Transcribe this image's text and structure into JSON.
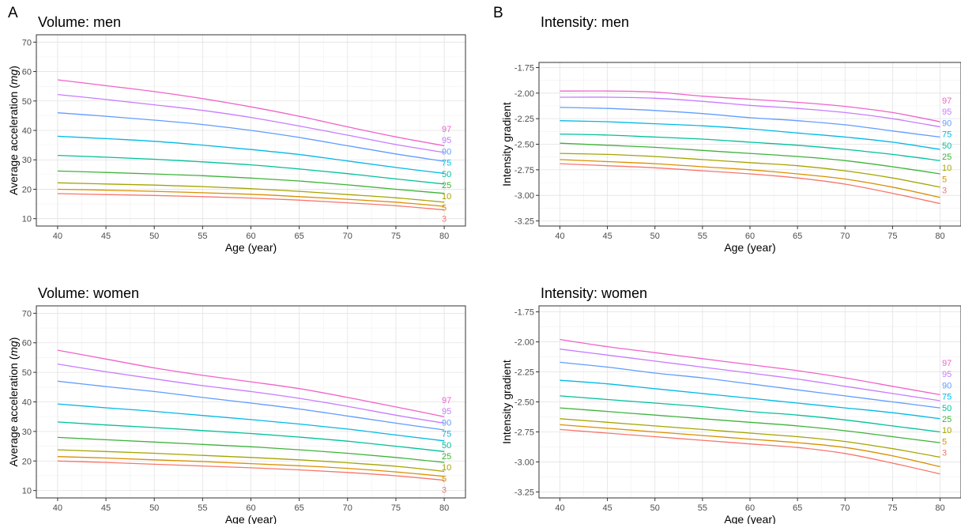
{
  "percentile_colors": {
    "97": "#f063c8",
    "95": "#c77cff",
    "90": "#619cff",
    "75": "#00b8e7",
    "50": "#00c19a",
    "25": "#3eb33a",
    "10": "#a3a500",
    "5": "#d89000",
    "3": "#f8766d"
  },
  "panel_letters": [
    "A",
    "B"
  ],
  "chart_data": [
    {
      "type": "line",
      "panel": "A",
      "title": "Volume: men",
      "xlabel": "Age (year)",
      "ylabel": "Average acceleration (mg)",
      "ylabel_plain": "Average acceleration (",
      "ylabel_italic": "mg",
      "ylabel_end": ")",
      "xlim": [
        37.8,
        82.2
      ],
      "ylim": [
        7.5,
        72.5
      ],
      "xticks": [
        40,
        45,
        50,
        55,
        60,
        65,
        70,
        75,
        80
      ],
      "yticks": [
        10,
        20,
        30,
        40,
        50,
        60,
        70
      ],
      "ytick_labels": [
        "10",
        "20",
        "30",
        "40",
        "50",
        "60",
        "70"
      ],
      "grid": true,
      "x": [
        40,
        45,
        50,
        55,
        60,
        65,
        70,
        75,
        80
      ],
      "series": [
        {
          "name": "97",
          "values": [
            57.2,
            55.2,
            53.2,
            50.8,
            48.0,
            44.8,
            41.2,
            37.8,
            34.8
          ]
        },
        {
          "name": "95",
          "values": [
            52.2,
            50.5,
            48.7,
            46.8,
            44.4,
            41.5,
            38.4,
            35.2,
            32.5
          ]
        },
        {
          "name": "90",
          "values": [
            46.0,
            44.8,
            43.5,
            42.0,
            40.0,
            37.6,
            34.8,
            32.0,
            29.5
          ]
        },
        {
          "name": "75",
          "values": [
            38.0,
            37.2,
            36.3,
            35.0,
            33.5,
            31.8,
            29.6,
            27.4,
            25.4
          ]
        },
        {
          "name": "50",
          "values": [
            31.5,
            30.9,
            30.2,
            29.3,
            28.3,
            26.9,
            25.3,
            23.5,
            21.8
          ]
        },
        {
          "name": "25",
          "values": [
            26.2,
            25.7,
            25.2,
            24.6,
            23.8,
            22.8,
            21.5,
            20.0,
            18.6
          ]
        },
        {
          "name": "10",
          "values": [
            22.2,
            21.8,
            21.4,
            20.9,
            20.2,
            19.3,
            18.2,
            17.1,
            15.6
          ]
        },
        {
          "name": "5",
          "values": [
            20.0,
            19.7,
            19.3,
            18.8,
            18.3,
            17.5,
            16.6,
            15.6,
            14.2
          ]
        },
        {
          "name": "3",
          "values": [
            18.5,
            18.2,
            17.9,
            17.5,
            17.0,
            16.3,
            15.4,
            14.4,
            13.0
          ]
        }
      ]
    },
    {
      "type": "line",
      "panel": "B",
      "title": "Intensity: men",
      "xlabel": "Age (year)",
      "ylabel": "Intensity gradient",
      "xlim": [
        37.8,
        82.2
      ],
      "ylim": [
        -3.3,
        -1.7
      ],
      "xticks": [
        40,
        45,
        50,
        55,
        60,
        65,
        70,
        75,
        80
      ],
      "yticks": [
        -3.25,
        -3.0,
        -2.75,
        -2.5,
        -2.25,
        -2.0,
        -1.75
      ],
      "ytick_labels": [
        "-3.25",
        "-3.00",
        "-2.75",
        "-2.50",
        "-2.25",
        "-2.00",
        "-1.75"
      ],
      "grid": true,
      "x": [
        40,
        45,
        50,
        55,
        60,
        65,
        70,
        75,
        80
      ],
      "series": [
        {
          "name": "97",
          "values": [
            -1.98,
            -1.98,
            -1.99,
            -2.03,
            -2.06,
            -2.09,
            -2.13,
            -2.19,
            -2.28
          ]
        },
        {
          "name": "95",
          "values": [
            -2.04,
            -2.04,
            -2.05,
            -2.08,
            -2.12,
            -2.15,
            -2.19,
            -2.25,
            -2.33
          ]
        },
        {
          "name": "90",
          "values": [
            -2.14,
            -2.15,
            -2.17,
            -2.2,
            -2.24,
            -2.27,
            -2.31,
            -2.37,
            -2.43
          ]
        },
        {
          "name": "75",
          "values": [
            -2.27,
            -2.28,
            -2.3,
            -2.32,
            -2.35,
            -2.39,
            -2.43,
            -2.48,
            -2.55
          ]
        },
        {
          "name": "50",
          "values": [
            -2.4,
            -2.41,
            -2.43,
            -2.45,
            -2.48,
            -2.51,
            -2.55,
            -2.6,
            -2.66
          ]
        },
        {
          "name": "25",
          "values": [
            -2.49,
            -2.51,
            -2.53,
            -2.56,
            -2.59,
            -2.62,
            -2.66,
            -2.72,
            -2.79
          ]
        },
        {
          "name": "10",
          "values": [
            -2.59,
            -2.6,
            -2.62,
            -2.65,
            -2.68,
            -2.71,
            -2.76,
            -2.83,
            -2.92
          ]
        },
        {
          "name": "5",
          "values": [
            -2.65,
            -2.67,
            -2.69,
            -2.72,
            -2.75,
            -2.79,
            -2.84,
            -2.92,
            -3.02
          ]
        },
        {
          "name": "3",
          "values": [
            -2.69,
            -2.71,
            -2.73,
            -2.76,
            -2.79,
            -2.83,
            -2.89,
            -2.98,
            -3.08
          ]
        }
      ]
    },
    {
      "type": "line",
      "panel": "",
      "title": "Volume: women",
      "xlabel": "Age (year)",
      "ylabel": "Average acceleration (mg)",
      "ylabel_plain": "Average acceleration (",
      "ylabel_italic": "mg",
      "ylabel_end": ")",
      "xlim": [
        37.8,
        82.2
      ],
      "ylim": [
        7.5,
        72.5
      ],
      "xticks": [
        40,
        45,
        50,
        55,
        60,
        65,
        70,
        75,
        80
      ],
      "yticks": [
        10,
        20,
        30,
        40,
        50,
        60,
        70
      ],
      "ytick_labels": [
        "10",
        "20",
        "30",
        "40",
        "50",
        "60",
        "70"
      ],
      "grid": true,
      "x": [
        40,
        45,
        50,
        55,
        60,
        65,
        70,
        75,
        80
      ],
      "series": [
        {
          "name": "97",
          "values": [
            57.5,
            54.5,
            51.5,
            49.0,
            46.8,
            44.5,
            41.5,
            38.3,
            35.0
          ]
        },
        {
          "name": "95",
          "values": [
            52.8,
            50.2,
            47.8,
            45.5,
            43.5,
            41.2,
            38.5,
            35.5,
            32.8
          ]
        },
        {
          "name": "90",
          "values": [
            47.0,
            45.2,
            43.5,
            41.5,
            39.6,
            37.6,
            35.2,
            32.8,
            30.5
          ]
        },
        {
          "name": "75",
          "values": [
            39.3,
            38.0,
            36.8,
            35.4,
            34.0,
            32.5,
            30.8,
            28.8,
            26.8
          ]
        },
        {
          "name": "50",
          "values": [
            33.2,
            32.2,
            31.3,
            30.3,
            29.3,
            28.1,
            26.7,
            25.0,
            23.2
          ]
        },
        {
          "name": "25",
          "values": [
            28.0,
            27.2,
            26.4,
            25.6,
            24.8,
            23.8,
            22.6,
            21.2,
            19.5
          ]
        },
        {
          "name": "10",
          "values": [
            23.8,
            23.2,
            22.6,
            21.9,
            21.2,
            20.4,
            19.4,
            18.2,
            16.5
          ]
        },
        {
          "name": "5",
          "values": [
            21.5,
            21.0,
            20.4,
            19.8,
            19.1,
            18.4,
            17.5,
            16.3,
            14.8
          ]
        },
        {
          "name": "3",
          "values": [
            20.0,
            19.5,
            18.9,
            18.3,
            17.7,
            17.0,
            16.1,
            15.0,
            13.5
          ]
        }
      ]
    },
    {
      "type": "line",
      "panel": "",
      "title": "Intensity: women",
      "xlabel": "Age (year)",
      "ylabel": "Intensity gradient",
      "xlim": [
        37.8,
        82.2
      ],
      "ylim": [
        -3.3,
        -1.7
      ],
      "xticks": [
        40,
        45,
        50,
        55,
        60,
        65,
        70,
        75,
        80
      ],
      "yticks": [
        -3.25,
        -3.0,
        -2.75,
        -2.5,
        -2.25,
        -2.0,
        -1.75
      ],
      "ytick_labels": [
        "-3.25",
        "-3.00",
        "-2.75",
        "-2.50",
        "-2.25",
        "-2.00",
        "-1.75"
      ],
      "grid": true,
      "x": [
        40,
        45,
        50,
        55,
        60,
        65,
        70,
        75,
        80
      ],
      "series": [
        {
          "name": "97",
          "values": [
            -1.98,
            -2.04,
            -2.09,
            -2.14,
            -2.19,
            -2.24,
            -2.3,
            -2.37,
            -2.44
          ]
        },
        {
          "name": "95",
          "values": [
            -2.06,
            -2.11,
            -2.16,
            -2.21,
            -2.26,
            -2.31,
            -2.37,
            -2.43,
            -2.49
          ]
        },
        {
          "name": "90",
          "values": [
            -2.17,
            -2.21,
            -2.26,
            -2.3,
            -2.35,
            -2.4,
            -2.45,
            -2.5,
            -2.55
          ]
        },
        {
          "name": "75",
          "values": [
            -2.32,
            -2.35,
            -2.39,
            -2.43,
            -2.47,
            -2.51,
            -2.55,
            -2.59,
            -2.64
          ]
        },
        {
          "name": "50",
          "values": [
            -2.45,
            -2.48,
            -2.51,
            -2.54,
            -2.58,
            -2.61,
            -2.65,
            -2.7,
            -2.75
          ]
        },
        {
          "name": "25",
          "values": [
            -2.55,
            -2.58,
            -2.61,
            -2.64,
            -2.67,
            -2.7,
            -2.74,
            -2.79,
            -2.84
          ]
        },
        {
          "name": "10",
          "values": [
            -2.64,
            -2.67,
            -2.7,
            -2.73,
            -2.76,
            -2.79,
            -2.83,
            -2.89,
            -2.96
          ]
        },
        {
          "name": "5",
          "values": [
            -2.69,
            -2.72,
            -2.75,
            -2.78,
            -2.81,
            -2.84,
            -2.88,
            -2.95,
            -3.04
          ]
        },
        {
          "name": "3",
          "values": [
            -2.73,
            -2.76,
            -2.79,
            -2.82,
            -2.85,
            -2.88,
            -2.93,
            -3.01,
            -3.1
          ]
        }
      ]
    }
  ]
}
